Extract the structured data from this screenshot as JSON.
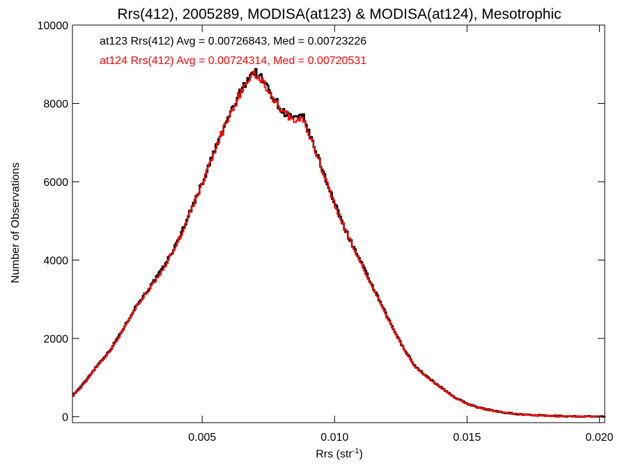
{
  "chart_data": {
    "type": "line",
    "title": "Rrs(412), 2005289, MODISA(at123) & MODISA(at124), Mesotrophic",
    "xlabel_main": "Rrs (str",
    "xlabel_sup": "-1",
    "xlabel_close": ")",
    "ylabel": "Number of Observations",
    "xlim": [
      0.0001,
      0.0202
    ],
    "ylim": [
      -150,
      10000
    ],
    "xticks": [
      {
        "value": 0.005,
        "label": "0.005"
      },
      {
        "value": 0.01,
        "label": "0.010"
      },
      {
        "value": 0.015,
        "label": "0.015"
      },
      {
        "value": 0.02,
        "label": "0.020"
      }
    ],
    "yticks": [
      {
        "value": 0,
        "label": "0"
      },
      {
        "value": 2000,
        "label": "2000"
      },
      {
        "value": 4000,
        "label": "4000"
      },
      {
        "value": 6000,
        "label": "6000"
      },
      {
        "value": 8000,
        "label": "8000"
      },
      {
        "value": 10000,
        "label": "10000"
      }
    ],
    "grid": false,
    "legend_position": "top-left",
    "series": [
      {
        "name": "at123",
        "color": "#000000",
        "annotation": "at123 Rrs(412) Avg = 0.00726843, Med = 0.00723226",
        "x": [
          0.0001,
          0.0005,
          0.001,
          0.0015,
          0.002,
          0.0025,
          0.003,
          0.0035,
          0.004,
          0.0045,
          0.005,
          0.0055,
          0.006,
          0.0065,
          0.0068,
          0.007,
          0.0072,
          0.0075,
          0.008,
          0.0085,
          0.0088,
          0.009,
          0.0095,
          0.01,
          0.0105,
          0.011,
          0.0115,
          0.012,
          0.0125,
          0.013,
          0.0135,
          0.014,
          0.0145,
          0.015,
          0.0155,
          0.016,
          0.0165,
          0.017,
          0.0175,
          0.018,
          0.019,
          0.02,
          0.0202
        ],
        "y": [
          550,
          850,
          1300,
          1700,
          2250,
          2850,
          3300,
          3800,
          4400,
          5200,
          6000,
          6900,
          7700,
          8400,
          8750,
          8780,
          8650,
          8350,
          7800,
          7600,
          7650,
          7250,
          6350,
          5400,
          4600,
          3900,
          3200,
          2500,
          1850,
          1300,
          1000,
          750,
          500,
          330,
          220,
          150,
          100,
          60,
          40,
          25,
          10,
          5,
          0
        ]
      },
      {
        "name": "at124",
        "color": "#ff0000",
        "annotation": "at124 Rrs(412) Avg = 0.00724314, Med = 0.00720531",
        "x": [
          0.0001,
          0.0005,
          0.001,
          0.0015,
          0.002,
          0.0025,
          0.003,
          0.0035,
          0.004,
          0.0045,
          0.005,
          0.0055,
          0.006,
          0.0065,
          0.0068,
          0.007,
          0.0072,
          0.0075,
          0.008,
          0.0085,
          0.0088,
          0.009,
          0.0095,
          0.01,
          0.0105,
          0.011,
          0.0115,
          0.012,
          0.0125,
          0.013,
          0.0135,
          0.014,
          0.0145,
          0.015,
          0.0155,
          0.016,
          0.0165,
          0.017,
          0.0175,
          0.018,
          0.019,
          0.02,
          0.0202
        ],
        "y": [
          540,
          830,
          1280,
          1680,
          2230,
          2820,
          3280,
          3770,
          4370,
          5170,
          5980,
          6870,
          7680,
          8380,
          8700,
          8730,
          8600,
          8300,
          7780,
          7560,
          7600,
          7230,
          6320,
          5370,
          4580,
          3870,
          3180,
          2480,
          1840,
          1290,
          990,
          740,
          490,
          330,
          220,
          150,
          100,
          60,
          40,
          25,
          10,
          5,
          0
        ]
      }
    ]
  }
}
